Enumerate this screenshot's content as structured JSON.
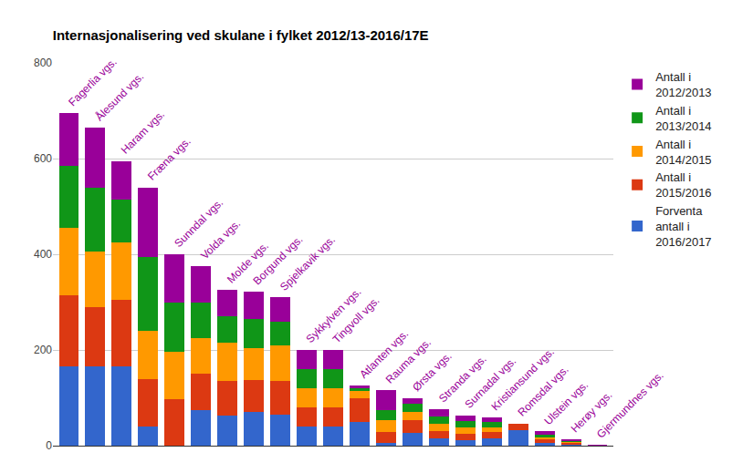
{
  "chart_data": {
    "type": "bar",
    "title": "Internasjonalisering ved skulane i fylket 2012/13-2016/17E",
    "categories": [
      "Fagerlia vgs.",
      "Ålesund vgs.",
      "Haram vgs.",
      "Fræna vgs.",
      "Sunndal vgs.",
      "Volda vgs.",
      "Molde vgs.",
      "Borgund vgs.",
      "Spjelkavik vgs.",
      "Sykkylven vgs.",
      "Tingvoll vgs.",
      "Atlanten vgs.",
      "Rauma vgs.",
      "Ørsta vgs.",
      "Stranda vgs.",
      "Surnadal vgs.",
      "Kristiansund vgs.",
      "Romsdal vgs.",
      "Ulstein vgs.",
      "Herøy vgs.",
      "Gjermundnes vgs."
    ],
    "series": [
      {
        "name": "Forventa antall i 2016/2017",
        "color": "#3366cc",
        "values": [
          165,
          165,
          165,
          40,
          0,
          75,
          63,
          70,
          65,
          40,
          40,
          50,
          5,
          26,
          15,
          11,
          15,
          32,
          6,
          2,
          0
        ]
      },
      {
        "name": "Antall i 2015/2016",
        "color": "#dc3912",
        "values": [
          150,
          125,
          140,
          100,
          97,
          75,
          72,
          67,
          70,
          40,
          40,
          50,
          23,
          27,
          15,
          14,
          14,
          14,
          7,
          4,
          0
        ]
      },
      {
        "name": "Antall i 2014/2015",
        "color": "#ff9900",
        "values": [
          140,
          115,
          120,
          100,
          100,
          75,
          80,
          67,
          75,
          40,
          40,
          15,
          25,
          17,
          16,
          13,
          9,
          0,
          4,
          2,
          0
        ]
      },
      {
        "name": "Antall i 2013/2014",
        "color": "#109618",
        "values": [
          130,
          135,
          90,
          155,
          103,
          75,
          55,
          61,
          50,
          40,
          40,
          5,
          21,
          18,
          15,
          13,
          12,
          0,
          6,
          2,
          0
        ]
      },
      {
        "name": "Antall i 2012/2013",
        "color": "#990099",
        "values": [
          110,
          125,
          80,
          145,
          100,
          75,
          56,
          57,
          50,
          40,
          40,
          6,
          42,
          11,
          15,
          12,
          9,
          0,
          7,
          3,
          1
        ]
      }
    ],
    "ylim": [
      0,
      800
    ],
    "yticks": [
      0,
      200,
      400,
      600,
      800
    ],
    "grid": true,
    "stacked": true,
    "legend": "top right",
    "tick_labels": "y"
  }
}
